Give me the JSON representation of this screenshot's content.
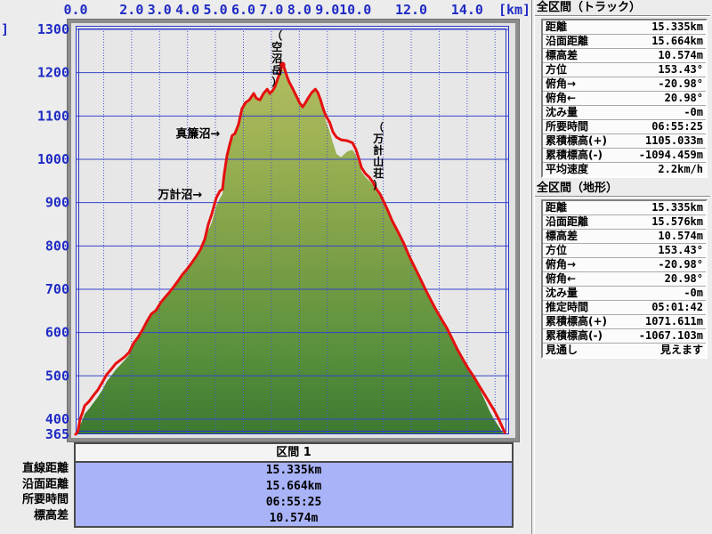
{
  "colors": {
    "window_bg": "#ececec",
    "plot_bg": "#e7e7e7",
    "frame_gray": "#8c8c8c",
    "axis_label_blue": "#1f2bc4",
    "grid_blue": "#3743c9",
    "grid_dotted_blue": "#4553cf",
    "track_red": "#e60f0f",
    "terrain_top": "#bcc168",
    "terrain_mid": "#7da047",
    "terrain_bottom": "#3c7a30",
    "segment_values_bg": "#a9b3f8"
  },
  "chart_data": {
    "type": "area",
    "title": "",
    "x_unit_label": "[km]",
    "y_unit_label_clipped": "]",
    "x_tick_labels": [
      "0.0",
      "2.0",
      "3.0",
      "4.0",
      "5.0",
      "6.0",
      "7.0",
      "8.0",
      "9.0",
      "10.0",
      "12.0",
      "14.0"
    ],
    "x_minor_grid_step_km": 1,
    "x_range_km": [
      0,
      15.5
    ],
    "y_tick_labels": [
      "1300",
      "1200",
      "1100",
      "1000",
      "900",
      "800",
      "700",
      "600",
      "500",
      "400",
      "365"
    ],
    "y_range_m": [
      365,
      1300
    ],
    "grid": true,
    "legend": "none",
    "series": [
      {
        "name": "track",
        "type": "line",
        "points": [
          [
            0,
            365
          ],
          [
            0.08,
            372
          ],
          [
            0.16,
            400
          ],
          [
            0.24,
            414
          ],
          [
            0.32,
            431
          ],
          [
            0.48,
            441
          ],
          [
            0.64,
            455
          ],
          [
            0.8,
            468
          ],
          [
            0.96,
            486
          ],
          [
            1.11,
            503
          ],
          [
            1.27,
            515
          ],
          [
            1.43,
            528
          ],
          [
            1.59,
            536
          ],
          [
            1.75,
            544
          ],
          [
            1.91,
            554
          ],
          [
            2.07,
            575
          ],
          [
            2.23,
            589
          ],
          [
            2.39,
            606
          ],
          [
            2.55,
            626
          ],
          [
            2.71,
            643
          ],
          [
            2.87,
            651
          ],
          [
            3.03,
            668
          ],
          [
            3.18,
            680
          ],
          [
            3.34,
            692
          ],
          [
            3.5,
            705
          ],
          [
            3.66,
            719
          ],
          [
            3.82,
            734
          ],
          [
            3.98,
            746
          ],
          [
            4.14,
            760
          ],
          [
            4.3,
            775
          ],
          [
            4.46,
            791
          ],
          [
            4.62,
            816
          ],
          [
            4.74,
            849
          ],
          [
            4.87,
            874
          ],
          [
            5.03,
            911
          ],
          [
            5.16,
            927
          ],
          [
            5.25,
            931
          ],
          [
            5.31,
            964
          ],
          [
            5.41,
            1008
          ],
          [
            5.51,
            1034
          ],
          [
            5.6,
            1055
          ],
          [
            5.69,
            1059
          ],
          [
            5.82,
            1080
          ],
          [
            5.95,
            1117
          ],
          [
            6.08,
            1131
          ],
          [
            6.21,
            1137
          ],
          [
            6.37,
            1152
          ],
          [
            6.46,
            1141
          ],
          [
            6.59,
            1137
          ],
          [
            6.72,
            1152
          ],
          [
            6.85,
            1162
          ],
          [
            6.94,
            1152
          ],
          [
            7.04,
            1158
          ],
          [
            7.13,
            1168
          ],
          [
            7.23,
            1187
          ],
          [
            7.32,
            1203
          ],
          [
            7.39,
            1218
          ],
          [
            7.45,
            1213
          ],
          [
            7.55,
            1193
          ],
          [
            7.64,
            1178
          ],
          [
            7.74,
            1166
          ],
          [
            7.83,
            1154
          ],
          [
            7.93,
            1141
          ],
          [
            8.02,
            1129
          ],
          [
            8.12,
            1121
          ],
          [
            8.22,
            1131
          ],
          [
            8.31,
            1141
          ],
          [
            8.44,
            1154
          ],
          [
            8.57,
            1162
          ],
          [
            8.66,
            1154
          ],
          [
            8.76,
            1137
          ],
          [
            8.85,
            1117
          ],
          [
            8.95,
            1100
          ],
          [
            9.08,
            1086
          ],
          [
            9.2,
            1063
          ],
          [
            9.33,
            1051
          ],
          [
            9.49,
            1045
          ],
          [
            9.71,
            1043
          ],
          [
            9.9,
            1038
          ],
          [
            10.03,
            1022
          ],
          [
            10.13,
            1001
          ],
          [
            10.22,
            981
          ],
          [
            10.35,
            968
          ],
          [
            10.51,
            958
          ],
          [
            10.64,
            946
          ],
          [
            10.76,
            931
          ],
          [
            10.89,
            919
          ],
          [
            11.02,
            902
          ],
          [
            11.15,
            884
          ],
          [
            11.31,
            859
          ],
          [
            11.53,
            832
          ],
          [
            11.72,
            808
          ],
          [
            11.94,
            775
          ],
          [
            12.13,
            750
          ],
          [
            12.32,
            725
          ],
          [
            12.52,
            698
          ],
          [
            12.71,
            674
          ],
          [
            12.9,
            651
          ],
          [
            13.09,
            630
          ],
          [
            13.28,
            610
          ],
          [
            13.47,
            585
          ],
          [
            13.66,
            560
          ],
          [
            13.85,
            538
          ],
          [
            14.04,
            517
          ],
          [
            14.23,
            499
          ],
          [
            14.42,
            478
          ],
          [
            14.62,
            457
          ],
          [
            14.81,
            437
          ],
          [
            14.97,
            420
          ],
          [
            15.13,
            400
          ],
          [
            15.25,
            383
          ],
          [
            15.35,
            369
          ]
        ]
      },
      {
        "name": "terrain",
        "type": "area",
        "points": [
          [
            0,
            365
          ],
          [
            0.08,
            368
          ],
          [
            0.16,
            385
          ],
          [
            0.24,
            398
          ],
          [
            0.32,
            412
          ],
          [
            0.48,
            424
          ],
          [
            0.64,
            438
          ],
          [
            0.8,
            452
          ],
          [
            0.96,
            468
          ],
          [
            1.11,
            487
          ],
          [
            1.27,
            500
          ],
          [
            1.43,
            514
          ],
          [
            1.59,
            525
          ],
          [
            1.75,
            536
          ],
          [
            1.91,
            548
          ],
          [
            2.07,
            570
          ],
          [
            2.23,
            585
          ],
          [
            2.39,
            603
          ],
          [
            2.55,
            623
          ],
          [
            2.71,
            641
          ],
          [
            2.87,
            649
          ],
          [
            3.03,
            666
          ],
          [
            3.18,
            678
          ],
          [
            3.34,
            690
          ],
          [
            3.5,
            703
          ],
          [
            3.66,
            717
          ],
          [
            3.82,
            732
          ],
          [
            3.98,
            744
          ],
          [
            4.14,
            758
          ],
          [
            4.3,
            773
          ],
          [
            4.46,
            788
          ],
          [
            4.62,
            810
          ],
          [
            4.74,
            835
          ],
          [
            4.87,
            855
          ],
          [
            5.03,
            893
          ],
          [
            5.16,
            910
          ],
          [
            5.25,
            920
          ],
          [
            5.31,
            948
          ],
          [
            5.41,
            992
          ],
          [
            5.51,
            1025
          ],
          [
            5.6,
            1048
          ],
          [
            5.69,
            1055
          ],
          [
            5.82,
            1077
          ],
          [
            5.95,
            1114
          ],
          [
            6.08,
            1128
          ],
          [
            6.21,
            1134
          ],
          [
            6.37,
            1149
          ],
          [
            6.46,
            1138
          ],
          [
            6.59,
            1134
          ],
          [
            6.72,
            1149
          ],
          [
            6.85,
            1159
          ],
          [
            6.94,
            1149
          ],
          [
            7.04,
            1155
          ],
          [
            7.13,
            1165
          ],
          [
            7.23,
            1184
          ],
          [
            7.32,
            1199
          ],
          [
            7.39,
            1207
          ],
          [
            7.45,
            1206
          ],
          [
            7.55,
            1188
          ],
          [
            7.64,
            1173
          ],
          [
            7.74,
            1162
          ],
          [
            7.83,
            1150
          ],
          [
            7.93,
            1137
          ],
          [
            8.02,
            1126
          ],
          [
            8.12,
            1118
          ],
          [
            8.22,
            1128
          ],
          [
            8.31,
            1138
          ],
          [
            8.44,
            1151
          ],
          [
            8.57,
            1158
          ],
          [
            8.66,
            1150
          ],
          [
            8.76,
            1133
          ],
          [
            8.85,
            1113
          ],
          [
            8.95,
            1088
          ],
          [
            9.08,
            1065
          ],
          [
            9.2,
            1038
          ],
          [
            9.33,
            1012
          ],
          [
            9.49,
            1005
          ],
          [
            9.71,
            1018
          ],
          [
            9.9,
            1022
          ],
          [
            10.03,
            1008
          ],
          [
            10.13,
            990
          ],
          [
            10.22,
            972
          ],
          [
            10.35,
            960
          ],
          [
            10.51,
            950
          ],
          [
            10.64,
            940
          ],
          [
            10.76,
            925
          ],
          [
            10.89,
            913
          ],
          [
            11.02,
            897
          ],
          [
            11.15,
            879
          ],
          [
            11.31,
            855
          ],
          [
            11.53,
            828
          ],
          [
            11.72,
            804
          ],
          [
            11.94,
            771
          ],
          [
            12.13,
            746
          ],
          [
            12.32,
            721
          ],
          [
            12.52,
            694
          ],
          [
            12.71,
            670
          ],
          [
            12.9,
            648
          ],
          [
            13.09,
            627
          ],
          [
            13.28,
            607
          ],
          [
            13.47,
            582
          ],
          [
            13.66,
            557
          ],
          [
            13.85,
            535
          ],
          [
            14.04,
            514
          ],
          [
            14.23,
            496
          ],
          [
            14.42,
            474
          ],
          [
            14.62,
            445
          ],
          [
            14.81,
            418
          ],
          [
            14.97,
            399
          ],
          [
            15.13,
            383
          ],
          [
            15.25,
            371
          ],
          [
            15.35,
            365
          ]
        ]
      }
    ],
    "annotations": [
      {
        "text": "真簾沼→",
        "km": 5.17,
        "el": 1059,
        "orientation": "horizontal",
        "anchor": "end"
      },
      {
        "text": "万計沼→",
        "km": 4.53,
        "el": 918,
        "orientation": "horizontal",
        "anchor": "end"
      },
      {
        "text": "（空沼岳）",
        "km": 7.2,
        "el": 1300,
        "orientation": "vertical"
      },
      {
        "text": "（万計山荘）",
        "km": 10.83,
        "el": 1088,
        "orientation": "vertical"
      }
    ],
    "summit_marker": {
      "km": 7.39,
      "el": 1218
    }
  },
  "bottom_panel": {
    "header": "区間 1",
    "row_labels": [
      "直線距離",
      "沿面距離",
      "所要時間",
      "標高差"
    ],
    "values": [
      "15.335km",
      "15.664km",
      "06:55:25",
      "10.574m"
    ]
  },
  "right_panel": {
    "sections": [
      {
        "title": "全区間（トラック）",
        "rows": [
          {
            "label": "距離",
            "value": "15.335km"
          },
          {
            "label": "沿面距離",
            "value": "15.664km"
          },
          {
            "label": "標高差",
            "value": "10.574m"
          },
          {
            "label": "方位",
            "value": "153.43°"
          },
          {
            "label": "俯角→",
            "value": "-20.98°"
          },
          {
            "label": "俯角←",
            "value": "20.98°"
          },
          {
            "label": "沈み量",
            "value": "-0m"
          },
          {
            "label": "所要時間",
            "value": "06:55:25"
          },
          {
            "label": "累積標高(+)",
            "value": "1105.033m"
          },
          {
            "label": "累積標高(-)",
            "value": "-1094.459m"
          },
          {
            "label": "平均速度",
            "value": "2.2km/h"
          }
        ]
      },
      {
        "title": "全区間（地形）",
        "rows": [
          {
            "label": "距離",
            "value": "15.335km"
          },
          {
            "label": "沿面距離",
            "value": "15.576km"
          },
          {
            "label": "標高差",
            "value": "10.574m"
          },
          {
            "label": "方位",
            "value": "153.43°"
          },
          {
            "label": "俯角→",
            "value": "-20.98°"
          },
          {
            "label": "俯角←",
            "value": "20.98°"
          },
          {
            "label": "沈み量",
            "value": "-0m"
          },
          {
            "label": "推定時間",
            "value": "05:01:42"
          },
          {
            "label": "累積標高(+)",
            "value": "1071.611m"
          },
          {
            "label": "累積標高(-)",
            "value": "-1067.103m"
          },
          {
            "label": "見通し",
            "value": "見えます"
          }
        ]
      }
    ]
  }
}
